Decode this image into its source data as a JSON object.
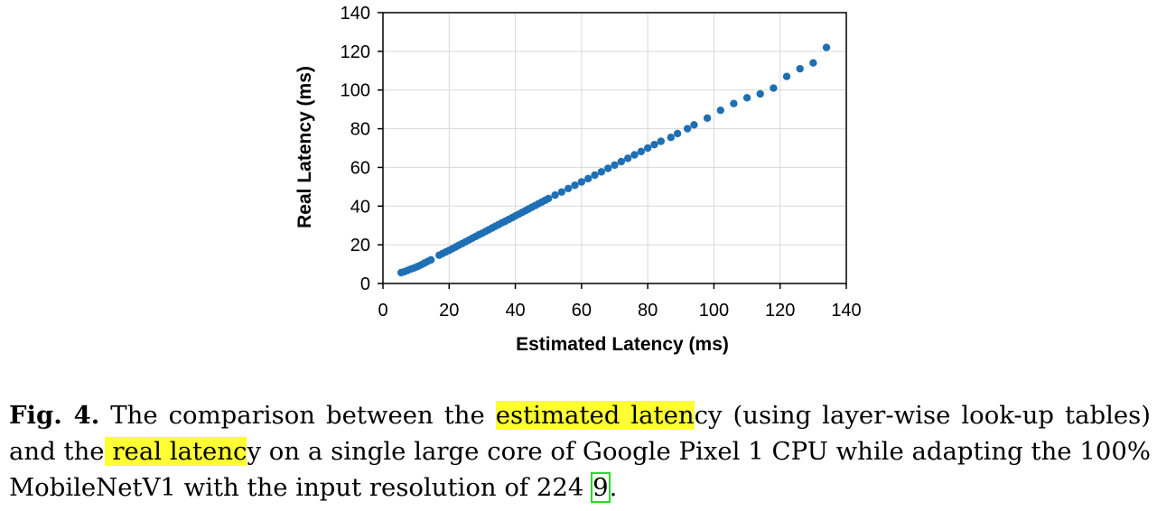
{
  "chart_data": {
    "type": "scatter",
    "xlabel": "Estimated Latency (ms)",
    "ylabel": "Real Latency (ms)",
    "xlim": [
      0,
      140
    ],
    "ylim": [
      0,
      140
    ],
    "x_ticks": [
      "0",
      "20",
      "40",
      "60",
      "80",
      "100",
      "120",
      "140"
    ],
    "y_ticks": [
      "0",
      "20",
      "40",
      "60",
      "80",
      "100",
      "120",
      "140"
    ],
    "grid": true,
    "marker_color": "#1f6fb5",
    "series": [
      {
        "points": [
          [
            5.5,
            5.6
          ],
          [
            6.5,
            6.1
          ],
          [
            7.5,
            6.8
          ],
          [
            8.5,
            7.5
          ],
          [
            9.5,
            8.1
          ],
          [
            10.5,
            8.8
          ],
          [
            11.5,
            9.6
          ],
          [
            12.5,
            10.5
          ],
          [
            13.5,
            11.4
          ],
          [
            14.5,
            12.2
          ],
          [
            17,
            14.6
          ],
          [
            18,
            15.5
          ],
          [
            19,
            16.3
          ],
          [
            20,
            17.1
          ],
          [
            21,
            18.0
          ],
          [
            22,
            18.9
          ],
          [
            23,
            19.8
          ],
          [
            24,
            20.7
          ],
          [
            25,
            21.6
          ],
          [
            26,
            22.5
          ],
          [
            27,
            23.4
          ],
          [
            28,
            24.3
          ],
          [
            29,
            25.2
          ],
          [
            30,
            26.0
          ],
          [
            31,
            26.9
          ],
          [
            32,
            27.8
          ],
          [
            33,
            28.7
          ],
          [
            34,
            29.6
          ],
          [
            35,
            30.5
          ],
          [
            36,
            31.4
          ],
          [
            37,
            32.2
          ],
          [
            38,
            33.1
          ],
          [
            39,
            34.0
          ],
          [
            40,
            34.9
          ],
          [
            41,
            35.8
          ],
          [
            42,
            36.7
          ],
          [
            43,
            37.6
          ],
          [
            44,
            38.5
          ],
          [
            45,
            39.4
          ],
          [
            46,
            40.3
          ],
          [
            47,
            41.2
          ],
          [
            48,
            42.1
          ],
          [
            49,
            43.0
          ],
          [
            50,
            43.9
          ],
          [
            52,
            45.7
          ],
          [
            54,
            47.3
          ],
          [
            56,
            49.1
          ],
          [
            58,
            50.8
          ],
          [
            60,
            52.5
          ],
          [
            62,
            54.2
          ],
          [
            64,
            56.0
          ],
          [
            66,
            57.7
          ],
          [
            68,
            59.5
          ],
          [
            70,
            61.2
          ],
          [
            72,
            63.0
          ],
          [
            74,
            64.7
          ],
          [
            76,
            66.5
          ],
          [
            78,
            68.2
          ],
          [
            80,
            70.0
          ],
          [
            82,
            71.8
          ],
          [
            84,
            73.5
          ],
          [
            87,
            75.5
          ],
          [
            89,
            77.5
          ],
          [
            92,
            80.0
          ],
          [
            94,
            82.0
          ],
          [
            98,
            85.5
          ],
          [
            102,
            89.5
          ],
          [
            106,
            93.0
          ],
          [
            110,
            96.0
          ],
          [
            114,
            98.0
          ],
          [
            118,
            101.0
          ],
          [
            122,
            107.0
          ],
          [
            126,
            111.0
          ],
          [
            130,
            114.0
          ],
          [
            134,
            122.0
          ]
        ]
      }
    ]
  },
  "caption": {
    "fig_label": "Fig. 4.",
    "t1": " The comparison between the ",
    "h1": "estimated laten",
    "t2": "cy (using layer-wise look-up tables) and the",
    "h2": " real latenc",
    "t3": "y on a single large core of Google Pixel 1 CPU while adapting the 100% MobileNetV1 with the input resolution of 224 ",
    "ref": "9",
    "t4": "."
  }
}
